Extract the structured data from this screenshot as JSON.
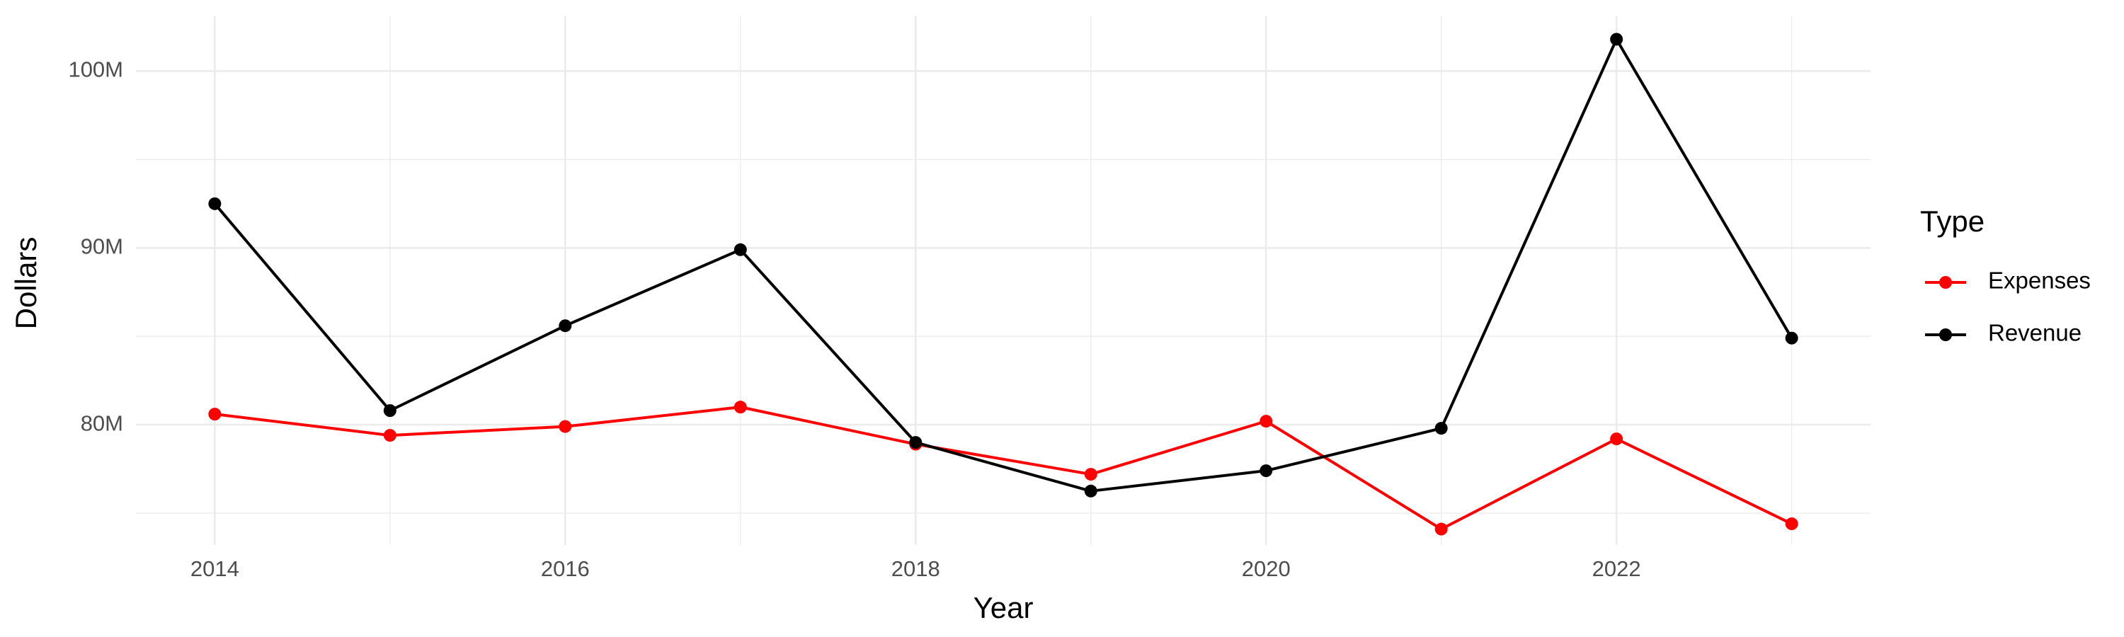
{
  "chart_data": {
    "type": "line",
    "x_label": "Year",
    "y_label": "Dollars",
    "legend_title": "Type",
    "x": [
      2014,
      2015,
      2016,
      2017,
      2018,
      2019,
      2020,
      2021,
      2022,
      2023
    ],
    "series": [
      {
        "name": "Expenses",
        "color": "#ff0000",
        "values": [
          80600000,
          79400000,
          79900000,
          81000000,
          78900000,
          77200000,
          80200000,
          74100000,
          79200000,
          74400000
        ]
      },
      {
        "name": "Revenue",
        "color": "#000000",
        "values": [
          92500000,
          80800000,
          85600000,
          89900000,
          79000000,
          76250000,
          77400000,
          79800000,
          101800000,
          84900000
        ]
      }
    ],
    "xlim": [
      2013.55,
      2023.45
    ],
    "xticks": [
      2014,
      2016,
      2018,
      2020,
      2022
    ],
    "x_minor_ticks": [
      2015,
      2017,
      2019,
      2021,
      2023
    ],
    "ylim": [
      73200000,
      103100000
    ],
    "yticks": [
      {
        "value": 80000000,
        "label": "80M"
      },
      {
        "value": 90000000,
        "label": "90M"
      },
      {
        "value": 100000000,
        "label": "100M"
      }
    ],
    "y_minor_ticks": [
      75000000,
      85000000,
      95000000
    ],
    "grid": true,
    "legend": "right"
  }
}
